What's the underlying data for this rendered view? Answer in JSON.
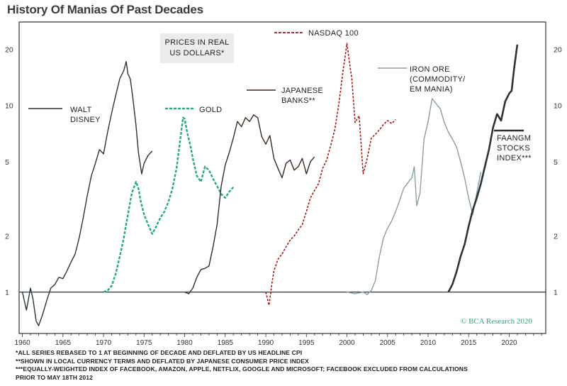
{
  "page_title": "History Of Manias Of Past Decades",
  "chart_data": {
    "type": "line",
    "title": "History Of Manias Of Past Decades",
    "xlabel": "",
    "ylabel": "",
    "y_scale": "log",
    "ylim": [
      0.6,
      28
    ],
    "xlim": [
      1959.6,
      2024.5
    ],
    "y_ticks": [
      1,
      2,
      5,
      10,
      20
    ],
    "y_tick_labels": [
      "1",
      "2",
      "5",
      "10",
      "20"
    ],
    "x_ticks": [
      1960,
      1965,
      1970,
      1975,
      1980,
      1985,
      1990,
      1995,
      2000,
      2005,
      2010,
      2015,
      2020
    ],
    "x_tick_labels": [
      "1960",
      "1965",
      "1970",
      "1975",
      "1980",
      "1985",
      "1990",
      "1995",
      "2000",
      "2005",
      "2010",
      "2015",
      "2020"
    ],
    "baseline": 1,
    "series": [
      {
        "name": "WALT DISNEY",
        "label_lines": [
          "WALT",
          "DISNEY"
        ],
        "color": "#2a3438",
        "style": "solid",
        "x": [
          1960,
          1960.5,
          1961,
          1961.3,
          1961.7,
          1962,
          1962.5,
          1963,
          1963.5,
          1964,
          1964.5,
          1965,
          1965.5,
          1966,
          1966.5,
          1967,
          1967.5,
          1968,
          1968.5,
          1969,
          1969.5,
          1970,
          1970.5,
          1971,
          1971.5,
          1972,
          1972.5,
          1972.8,
          1973,
          1973.3,
          1973.6,
          1974,
          1974.3,
          1974.7,
          1975,
          1975.5,
          1976
        ],
        "values": [
          1,
          0.8,
          1.05,
          0.92,
          0.7,
          0.66,
          0.76,
          0.9,
          1.05,
          1.1,
          1.2,
          1.18,
          1.3,
          1.45,
          1.6,
          1.95,
          2.5,
          3.3,
          4.2,
          4.9,
          5.8,
          5.5,
          7.2,
          9.1,
          11.3,
          13.9,
          15.4,
          17.2,
          14.8,
          13.9,
          11.1,
          7.8,
          5.6,
          4.3,
          4.9,
          5.4,
          5.7
        ]
      },
      {
        "name": "GOLD",
        "label_lines": [
          "GOLD"
        ],
        "color": "#2aa784",
        "style": "dashed",
        "x": [
          1970,
          1970.5,
          1971,
          1971.5,
          1972,
          1972.5,
          1973,
          1973.5,
          1974,
          1974.3,
          1974.6,
          1975,
          1975.5,
          1976,
          1976.5,
          1977,
          1977.5,
          1978,
          1978.5,
          1979,
          1979.5,
          1979.8,
          1980,
          1980.3,
          1980.7,
          1981,
          1981.5,
          1982,
          1982.5,
          1983,
          1983.5,
          1984,
          1984.5,
          1985,
          1985.5,
          1986
        ],
        "values": [
          1,
          1.02,
          1.08,
          1.25,
          1.55,
          1.95,
          2.6,
          3.4,
          3.9,
          3.6,
          3.05,
          2.6,
          2.3,
          2.05,
          2.25,
          2.5,
          2.7,
          3.05,
          3.6,
          4.6,
          6.8,
          8.6,
          8.5,
          7.2,
          6.1,
          5.2,
          4.2,
          3.9,
          4.7,
          4.5,
          4.05,
          3.7,
          3.35,
          3.2,
          3.45,
          3.65
        ]
      },
      {
        "name": "JAPANESE BANKS**",
        "label_lines": [
          "JAPANESE",
          "BANKS**"
        ],
        "color": "#3a2a22",
        "style": "solid",
        "x": [
          1980,
          1980.5,
          1981,
          1981.5,
          1982,
          1982.5,
          1983,
          1983.5,
          1984,
          1984.5,
          1985,
          1985.5,
          1986,
          1986.5,
          1987,
          1987.5,
          1988,
          1988.5,
          1989,
          1989.5,
          1990,
          1990.5,
          1991,
          1991.5,
          1992,
          1992.5,
          1993,
          1993.5,
          1994,
          1994.5,
          1995,
          1995.5,
          1996
        ],
        "values": [
          1,
          0.98,
          1.05,
          1.2,
          1.32,
          1.34,
          1.38,
          1.75,
          2.3,
          3.7,
          4.8,
          5.6,
          6.7,
          8.2,
          7.7,
          8.6,
          8.2,
          8.9,
          8.6,
          6.8,
          6.2,
          6.9,
          5.2,
          4.6,
          4.1,
          4.9,
          5.1,
          4.5,
          4.7,
          5.2,
          4.3,
          5.0,
          5.3
        ]
      },
      {
        "name": "NASDAQ 100",
        "label_lines": [
          "NASDAQ 100"
        ],
        "color": "#a01818",
        "style": "dashed",
        "x": [
          1990,
          1990.4,
          1990.8,
          1991,
          1991.5,
          1992,
          1992.5,
          1993,
          1993.5,
          1994,
          1994.5,
          1995,
          1995.5,
          1996,
          1996.5,
          1997,
          1997.5,
          1998,
          1998.5,
          1999,
          1999.5,
          2000,
          2000.3,
          2000.6,
          2001,
          2001.5,
          2002,
          2002.5,
          2003,
          2003.5,
          2004,
          2004.5,
          2005,
          2005.5,
          2006
        ],
        "values": [
          1,
          0.85,
          1.15,
          1.3,
          1.5,
          1.6,
          1.75,
          1.9,
          2.0,
          2.15,
          2.3,
          2.7,
          3.2,
          3.5,
          3.8,
          4.6,
          5.1,
          6.1,
          7.4,
          10.2,
          15.1,
          21.5,
          17.2,
          13.9,
          8.1,
          8.8,
          4.3,
          5.2,
          6.7,
          7.0,
          7.4,
          7.9,
          8.3,
          8.0,
          8.4
        ]
      },
      {
        "name": "IRON ORE (COMMODITY/ EM MANIA)",
        "label_lines": [
          "IRON ORE",
          "(COMMODITY/",
          "EM MANIA)"
        ],
        "color": "#8a9ca6",
        "style": "solid",
        "x": [
          2000,
          2001,
          2002,
          2002.5,
          2003,
          2003.5,
          2004,
          2004.5,
          2005,
          2005.5,
          2006,
          2006.5,
          2007,
          2007.5,
          2008,
          2008.3,
          2008.6,
          2009,
          2009.5,
          2010,
          2010.5,
          2011,
          2011.5,
          2012,
          2012.5,
          2013,
          2013.5,
          2014,
          2014.5,
          2015,
          2015.5,
          2016,
          2016.5
        ],
        "values": [
          1,
          0.98,
          1.0,
          0.97,
          1.02,
          1.15,
          1.55,
          1.95,
          2.2,
          2.4,
          2.7,
          3.1,
          3.6,
          3.85,
          4.1,
          4.7,
          2.9,
          3.4,
          6.6,
          8.2,
          10.9,
          10.2,
          9.6,
          8.1,
          7.2,
          6.6,
          6.0,
          5.0,
          4.1,
          3.2,
          2.6,
          3.4,
          4.4
        ]
      },
      {
        "name": "FAANGM STOCKS INDEX***",
        "label_lines": [
          "FAANGM",
          "STOCKS",
          "INDEX***"
        ],
        "color": "#2a3438",
        "style": "solid-thick",
        "x": [
          2012.5,
          2013,
          2013.5,
          2014,
          2014.5,
          2015,
          2015.5,
          2016,
          2016.5,
          2017,
          2017.5,
          2018,
          2018.5,
          2019,
          2019.5,
          2020,
          2020.3,
          2020.6,
          2021
        ],
        "values": [
          1,
          1.1,
          1.28,
          1.55,
          1.8,
          2.25,
          2.75,
          3.2,
          3.8,
          4.7,
          5.8,
          7.6,
          9.0,
          8.3,
          10.5,
          11.6,
          12.0,
          15.8,
          21.2
        ]
      }
    ],
    "annotations": [
      {
        "text_lines": [
          "PRICES IN REAL",
          "US DOLLARS*"
        ]
      }
    ],
    "watermark": "© BCA Research 2020"
  },
  "footnotes": [
    "*ALL SERIES REBASED TO 1 AT BEGINNING OF DECADE AND DEFLATED BY US HEADLINE CPI",
    "**SHOWN IN LOCAL CURRENCY TERMS AND DEFLATED BY JAPANESE CONSUMER PRICE INDEX",
    "***EQUALLY-WEIGHTED INDEX OF FACEBOOK, AMAZON, APPLE, NETFLIX, GOOGLE AND MICROSOFT; FACEBOOK EXCLUDED FROM CALCULATIONS",
    "PRIOR TO MAY 18TH 2012"
  ]
}
